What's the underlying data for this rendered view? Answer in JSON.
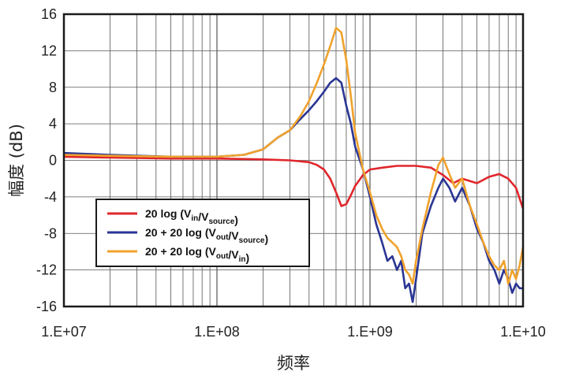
{
  "chart_data": {
    "type": "line",
    "title": "",
    "xlabel": "频率",
    "ylabel": "幅度 (dB)",
    "xscale": "log",
    "xlim": [
      10000000,
      10000000000
    ],
    "ylim": [
      -16,
      16
    ],
    "x_tick_labels": [
      "1.E+07",
      "1.E+08",
      "1.E+09",
      "1.E+10"
    ],
    "y_tick_labels": [
      "16",
      "12",
      "8",
      "4",
      "0",
      "-4",
      "-8",
      "-12",
      "-16"
    ],
    "y_ticks": [
      16,
      12,
      8,
      4,
      0,
      -4,
      -8,
      -12,
      -16
    ],
    "grid": true,
    "legend_position": "lower-left",
    "series": [
      {
        "name": "20 log (Vin/Vsource)",
        "legend": {
          "pre": "20 log (V",
          "sub1": "in",
          "mid": "/V",
          "sub2": "source",
          "post": ")"
        },
        "color": "#e0262b",
        "x": [
          10000000,
          20000000,
          50000000,
          100000000,
          200000000,
          300000000,
          400000000,
          450000000,
          500000000,
          550000000,
          600000000,
          650000000,
          700000000,
          750000000,
          800000000,
          900000000,
          1000000000,
          1200000000,
          1500000000,
          2000000000,
          2500000000,
          3000000000,
          3500000000,
          4000000000,
          5000000000,
          6000000000,
          7000000000,
          8000000000,
          9000000000,
          10000000000
        ],
        "y": [
          0.4,
          0.3,
          0.2,
          0.2,
          0.1,
          0.0,
          -0.2,
          -0.5,
          -1.0,
          -2.0,
          -3.5,
          -5.0,
          -4.8,
          -3.8,
          -2.8,
          -1.6,
          -1.0,
          -0.8,
          -0.6,
          -0.6,
          -0.8,
          -1.6,
          -2.5,
          -2.0,
          -2.5,
          -1.8,
          -1.5,
          -2.0,
          -3.0,
          -5.3
        ]
      },
      {
        "name": "20 + 20 log (Vout/Vsource)",
        "legend": {
          "pre": "20 + 20 log (V",
          "sub1": "out",
          "mid": "/V",
          "sub2": "source",
          "post": ")"
        },
        "color": "#2a3594",
        "x": [
          10000000,
          20000000,
          50000000,
          100000000,
          150000000,
          200000000,
          250000000,
          300000000,
          350000000,
          400000000,
          450000000,
          500000000,
          550000000,
          600000000,
          650000000,
          700000000,
          750000000,
          800000000,
          900000000,
          1000000000,
          1100000000,
          1200000000,
          1300000000,
          1400000000,
          1500000000,
          1600000000,
          1700000000,
          1800000000,
          1900000000,
          2000000000,
          2200000000,
          2500000000,
          2800000000,
          3000000000,
          3300000000,
          3600000000,
          4000000000,
          4500000000,
          5000000000,
          5500000000,
          6000000000,
          6500000000,
          7000000000,
          7500000000,
          8000000000,
          8500000000,
          9000000000,
          9500000000,
          10000000000
        ],
        "y": [
          0.8,
          0.6,
          0.4,
          0.4,
          0.6,
          1.2,
          2.5,
          3.3,
          4.5,
          5.5,
          6.5,
          7.5,
          8.5,
          9.0,
          8.5,
          6.0,
          4.0,
          1.5,
          -1.0,
          -4.0,
          -7.0,
          -9.0,
          -11.0,
          -10.5,
          -12.0,
          -11.0,
          -14.0,
          -13.5,
          -15.5,
          -13.0,
          -8.0,
          -5.0,
          -3.0,
          -2.0,
          -3.0,
          -4.5,
          -3.0,
          -5.0,
          -7.5,
          -9.0,
          -11.0,
          -12.0,
          -13.5,
          -12.0,
          -13.0,
          -14.5,
          -13.5,
          -14.0,
          -14.0
        ]
      },
      {
        "name": "20 + 20 log (Vout/Vin)",
        "legend": {
          "pre": "20 + 20 log (V",
          "sub1": "out",
          "mid": "/V",
          "sub2": "in",
          "post": ")"
        },
        "color": "#f0a22c",
        "x": [
          10000000,
          20000000,
          50000000,
          100000000,
          150000000,
          200000000,
          250000000,
          300000000,
          350000000,
          400000000,
          450000000,
          500000000,
          550000000,
          600000000,
          650000000,
          700000000,
          750000000,
          800000000,
          900000000,
          1000000000,
          1100000000,
          1200000000,
          1300000000,
          1400000000,
          1500000000,
          1600000000,
          1700000000,
          1800000000,
          1900000000,
          2000000000,
          2200000000,
          2500000000,
          2800000000,
          3000000000,
          3300000000,
          3600000000,
          4000000000,
          4500000000,
          5000000000,
          5500000000,
          6000000000,
          6500000000,
          7000000000,
          7500000000,
          8000000000,
          8500000000,
          9000000000,
          9500000000,
          10000000000
        ],
        "y": [
          0.6,
          0.5,
          0.4,
          0.4,
          0.6,
          1.2,
          2.5,
          3.3,
          4.8,
          6.5,
          8.5,
          10.5,
          12.5,
          14.5,
          14.0,
          11.0,
          7.0,
          3.0,
          -1.0,
          -3.5,
          -6.0,
          -7.5,
          -8.5,
          -9.0,
          -9.5,
          -10.5,
          -12.0,
          -12.5,
          -13.5,
          -11.0,
          -7.5,
          -3.5,
          -0.5,
          0.3,
          -1.5,
          -3.0,
          -2.0,
          -5.0,
          -7.0,
          -9.0,
          -10.5,
          -11.5,
          -12.0,
          -11.0,
          -13.5,
          -12.0,
          -13.0,
          -11.5,
          -9.5
        ]
      }
    ]
  }
}
